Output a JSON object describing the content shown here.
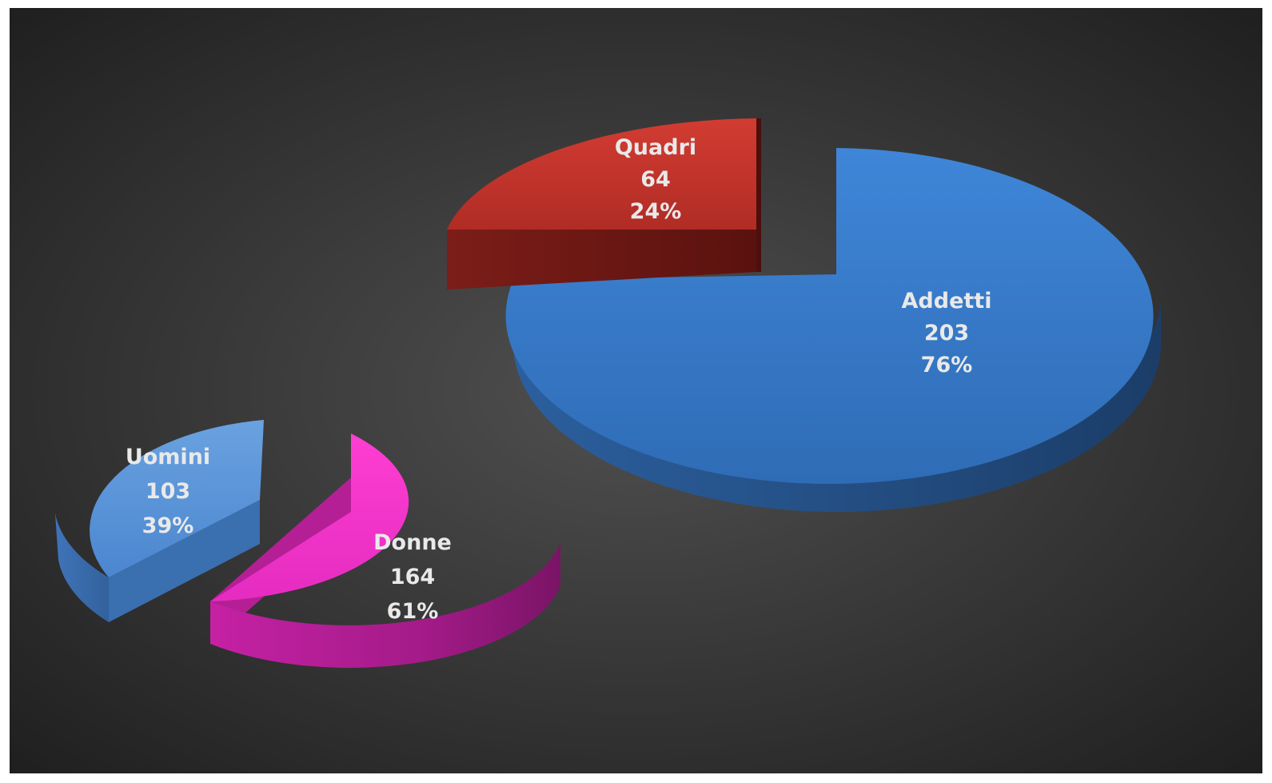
{
  "chart_data": [
    {
      "type": "pie",
      "variant": "3d-exploded",
      "slices": [
        {
          "label": "Quadri",
          "value": "64",
          "percent": "24%",
          "color": "#c8342c"
        },
        {
          "label": "Addetti",
          "value": "203",
          "percent": "76%",
          "color": "#3d7fd0"
        }
      ]
    },
    {
      "type": "pie",
      "variant": "3d-exploded",
      "slices": [
        {
          "label": "Uomini",
          "value": "103",
          "percent": "39%",
          "color": "#5b93d8"
        },
        {
          "label": "Donne",
          "value": "164",
          "percent": "61%",
          "color": "#f236c9"
        }
      ]
    }
  ],
  "colors": {
    "background_center": "#505050",
    "background_edge": "#1c1c1c",
    "label_text": "#e9e9e9"
  }
}
